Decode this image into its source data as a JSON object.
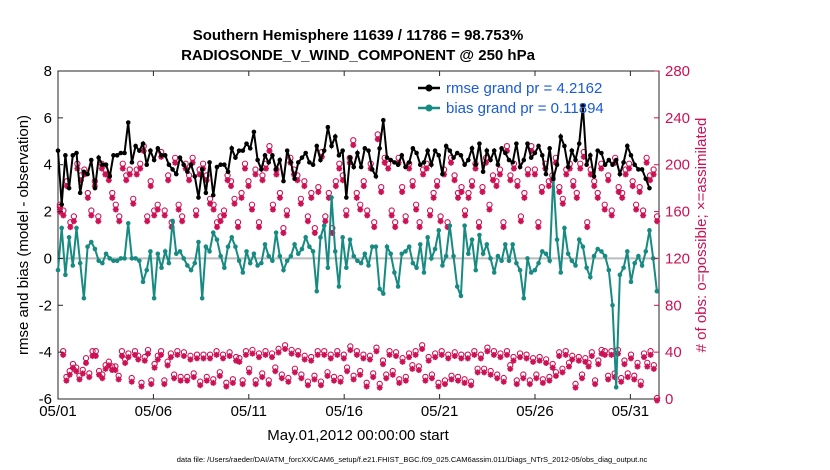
{
  "chart_data": {
    "type": "line",
    "title_line1": "Southern Hemisphere 11639 / 11786 = 98.753%",
    "title_line2": "RADIOSONDE_V_WIND_COMPONENT @ 250 hPa",
    "xlabel": "May.01,2012 00:00:00 start",
    "ylabel_left": "rmse and bias (model - observation)",
    "ylabel_right": "# of obs: o=possible; ×=assimilated",
    "xlim": [
      0,
      31.5
    ],
    "ylim_left": [
      -6,
      8
    ],
    "ylim_right": [
      0,
      280
    ],
    "xticks": [
      0,
      5,
      10,
      15,
      20,
      25,
      30
    ],
    "xtick_labels": [
      "05/01",
      "05/06",
      "05/11",
      "05/16",
      "05/21",
      "05/26",
      "05/31"
    ],
    "yticks_left": [
      -6,
      -4,
      -2,
      0,
      2,
      4,
      6,
      8
    ],
    "yticks_right": [
      0,
      40,
      80,
      120,
      160,
      200,
      240,
      280
    ],
    "colors": {
      "rmse": "#000000",
      "bias": "#178a82",
      "obs": "#cc1155",
      "zero": "#bbbbbb",
      "legend_text": "#1a5bd6"
    },
    "legend": {
      "rmse": "rmse grand pr = 4.2162",
      "bias": "bias grand pr = 0.11894",
      "location": "top-right"
    },
    "rmse": [
      4.6,
      2.3,
      4.4,
      3.0,
      4.4,
      4.5,
      2.8,
      3.7,
      3.6,
      4.2,
      3.0,
      4.3,
      4.0,
      4.0,
      3.5,
      4.4,
      4.4,
      4.5,
      4.5,
      5.8,
      4.1,
      4.8,
      4.6,
      4.9,
      4.0,
      4.6,
      4.2,
      4.7,
      4.4,
      4.4,
      4.0,
      3.8,
      3.6,
      4.3,
      4.0,
      3.7,
      4.0,
      3.5,
      2.6,
      3.8,
      2.8,
      4.1,
      2.7,
      3.9,
      4.0,
      4.0,
      3.7,
      4.7,
      4.3,
      4.6,
      4.6,
      4.9,
      4.7,
      5.4,
      4.2,
      3.8,
      4.4,
      4.1,
      4.4,
      3.8,
      4.2,
      3.3,
      4.6,
      4.1,
      3.4,
      4.1,
      4.3,
      4.5,
      4.1,
      4.0,
      4.8,
      4.2,
      4.6,
      5.6,
      4.8,
      5.2,
      4.4,
      4.6,
      2.6,
      4.3,
      3.9,
      4.5,
      3.9,
      4.7,
      4.6,
      3.8,
      3.5,
      4.7,
      5.9,
      4.3,
      4.2,
      4.1,
      4.0,
      4.4,
      3.9,
      4.1,
      4.7,
      4.5,
      4.0,
      4.1,
      4.6,
      4.0,
      4.6,
      4.4,
      3.6,
      4.8,
      4.6,
      4.3,
      4.5,
      4.4,
      4.0,
      4.2,
      4.7,
      4.0,
      4.9,
      3.7,
      4.6,
      4.2,
      4.6,
      4.0,
      4.7,
      4.5,
      4.2,
      4.1,
      4.9,
      3.9,
      4.2,
      4.9,
      4.3,
      4.5,
      4.8,
      4.4,
      3.6,
      4.7,
      3.4,
      4.0,
      5.2,
      4.8,
      3.9,
      4.6,
      4.2,
      4.9,
      6.5,
      4.0,
      4.4,
      3.5,
      4.6,
      4.5,
      4.0,
      4.2,
      4.0,
      4.2,
      3.6,
      4.1,
      4.8,
      4.4,
      4.0,
      3.8,
      3.8,
      3.4,
      3.0
    ],
    "bias": [
      -0.5,
      1.3,
      -0.7,
      0.9,
      -0.3,
      1.3,
      -0.2,
      -1.7,
      0.5,
      0.7,
      0.4,
      -0.1,
      -0.2,
      0.2,
      0.0,
      -0.1,
      -0.1,
      0.0,
      0.0,
      1.5,
      0.0,
      0.0,
      -0.1,
      -1.0,
      -0.5,
      0.3,
      -1.7,
      0.2,
      -0.4,
      0.3,
      -0.2,
      1.6,
      0.2,
      0.3,
      0.0,
      -0.3,
      -0.5,
      -0.2,
      0.7,
      -1.7,
      0.5,
      0.3,
      1.1,
      0.8,
      0.1,
      -0.4,
      0.5,
      0.9,
      0.5,
      -0.1,
      -0.6,
      0.3,
      -0.2,
      0.2,
      -0.3,
      -0.2,
      0.6,
      0.1,
      -0.1,
      1.1,
      0.1,
      -0.5,
      -0.1,
      0.1,
      0.6,
      0.2,
      0.4,
      0.9,
      0.5,
      0.3,
      -1.4,
      0.9,
      1.4,
      -0.4,
      2.6,
      0.3,
      -1.2,
      0.9,
      -0.4,
      0.8,
      0.1,
      -0.1,
      -0.2,
      0.2,
      -0.3,
      0.5,
      0.5,
      -1.3,
      -1.5,
      0.5,
      0.2,
      -0.6,
      -1.2,
      0.2,
      0.3,
      0.5,
      -0.2,
      -0.4,
      0.6,
      -0.6,
      0.9,
      0.0,
      0.4,
      1.2,
      -0.3,
      0.1,
      1.4,
      0.1,
      -1.2,
      -1.6,
      1.4,
      0.2,
      0.8,
      -0.5,
      1.0,
      0.2,
      0.6,
      0.0,
      -0.6,
      0.1,
      -0.1,
      0.6,
      -0.1,
      0.6,
      -0.2,
      -0.5,
      -1.7,
      0.0,
      -0.6,
      -0.5,
      -0.2,
      0.3,
      0.2,
      -0.1,
      3.5,
      0.8,
      -0.6,
      1.3,
      0.2,
      -0.1,
      -0.3,
      0.8,
      0.5,
      -0.4,
      -0.8,
      0.1,
      0.4,
      0.3,
      0.1,
      -0.5,
      -2.0,
      -5.5,
      -0.7,
      -0.4,
      0.3,
      -1.0,
      -0.2,
      0.1,
      -0.3,
      0.3,
      1.2,
      0.0,
      -1.4
    ],
    "obs_possible": [
      163,
      40,
      18,
      23,
      29,
      26,
      19,
      24,
      34,
      21,
      40,
      40,
      23,
      20,
      28,
      31,
      27,
      27,
      19,
      40,
      33,
      38,
      17,
      40,
      36,
      13,
      35,
      41,
      15,
      29,
      36,
      40,
      15,
      31,
      38,
      20,
      40,
      18,
      39,
      18,
      36,
      21,
      37,
      14,
      37,
      18,
      37,
      16,
      40,
      22,
      37,
      13,
      39,
      16,
      35,
      34,
      15,
      40,
      25,
      41,
      15,
      38,
      21,
      40,
      15,
      38,
      26,
      42,
      20,
      45,
      17,
      41,
      25,
      40,
      20,
      36,
      14,
      35,
      19,
      40,
      14,
      40,
      22,
      37,
      18,
      40,
      17,
      37,
      26,
      44,
      19,
      40,
      23,
      37,
      13,
      36,
      21,
      43,
      12,
      32,
      20,
      40,
      23,
      39,
      16,
      34,
      18,
      38,
      28,
      40,
      27,
      45,
      18,
      35,
      20,
      38,
      13,
      40,
      15,
      37,
      19,
      39,
      18,
      37,
      16,
      37,
      14,
      40,
      25,
      37,
      25,
      43,
      23,
      40,
      20,
      38,
      17,
      40,
      28,
      35,
      15,
      38,
      20,
      37,
      15,
      34,
      20,
      35,
      16,
      33,
      18,
      29,
      22,
      39,
      25,
      40,
      30,
      36,
      12,
      35,
      20,
      34,
      30,
      39,
      15,
      32,
      41,
      40,
      19,
      40,
      21,
      41,
      17,
      32,
      21,
      37,
      19,
      30,
      14,
      38,
      30,
      40,
      28,
      0
    ],
    "obs_assimilated": [
      161,
      39,
      17,
      22,
      28,
      25,
      18,
      23,
      32,
      20,
      38,
      38,
      22,
      19,
      27,
      30,
      26,
      26,
      18,
      38,
      32,
      37,
      16,
      39,
      35,
      12,
      34,
      40,
      14,
      28,
      35,
      39,
      14,
      30,
      37,
      19,
      39,
      17,
      38,
      17,
      35,
      20,
      36,
      13,
      36,
      17,
      36,
      15,
      39,
      21,
      36,
      12,
      38,
      15,
      34,
      33,
      14,
      39,
      24,
      40,
      14,
      37,
      20,
      39,
      14,
      37,
      25,
      41,
      19,
      44,
      16,
      40,
      24,
      39,
      19,
      35,
      13,
      34,
      18,
      39,
      13,
      39,
      21,
      36,
      17,
      39,
      16,
      36,
      25,
      43,
      18,
      39,
      22,
      36,
      12,
      35,
      20,
      42,
      11,
      31,
      19,
      39,
      22,
      38,
      15,
      33,
      17,
      37,
      27,
      39,
      26,
      44,
      17,
      34,
      19,
      37,
      12,
      39,
      14,
      36,
      18,
      38,
      17,
      36,
      15,
      36,
      13,
      39,
      24,
      36,
      24,
      42,
      22,
      39,
      19,
      37,
      16,
      39,
      27,
      34,
      14,
      37,
      19,
      36,
      14,
      33,
      19,
      34,
      15,
      32,
      17,
      28,
      21,
      38,
      24,
      39,
      29,
      35,
      11,
      34,
      19,
      33,
      29,
      38,
      14,
      31,
      40,
      39,
      18,
      39,
      20,
      40,
      16,
      31,
      20,
      36,
      18,
      29,
      13,
      37,
      29,
      39,
      27,
      0
    ],
    "obs_upper": [
      165,
      160,
      185,
      150,
      155,
      200,
      190,
      195,
      175,
      160,
      185,
      155,
      200,
      195,
      190,
      175,
      165,
      155,
      200,
      190,
      195,
      170,
      195,
      200,
      215,
      155,
      185,
      160,
      165,
      210,
      160,
      190,
      150,
      205,
      165,
      155,
      200,
      190,
      205,
      160,
      195,
      200,
      190,
      170,
      165,
      150,
      155,
      160,
      190,
      185,
      170,
      150,
      175,
      200,
      185,
      165,
      195,
      150,
      190,
      200,
      215,
      165,
      195,
      175,
      145,
      160,
      205,
      195,
      190,
      170,
      185,
      155,
      175,
      145,
      180,
      210,
      155,
      175,
      145,
      185,
      200,
      190,
      160,
      205,
      220,
      175,
      165,
      185,
      160,
      200,
      150,
      225,
      180,
      205,
      200,
      160,
      150,
      205,
      180,
      155,
      200,
      185,
      165,
      150,
      195,
      200,
      160,
      175,
      185,
      155,
      195,
      150,
      205,
      190,
      175,
      180,
      160,
      175,
      185,
      200,
      150,
      180,
      205,
      165,
      190,
      185,
      195,
      150,
      215,
      190,
      200,
      185,
      155,
      175,
      195,
      215,
      195,
      150,
      180,
      200,
      185,
      190,
      205,
      180,
      170,
      195,
      200,
      185,
      175,
      200,
      210,
      150,
      195,
      185,
      175,
      200,
      165,
      190,
      160,
      205,
      180,
      175,
      195,
      200,
      185,
      165,
      180,
      160,
      205,
      190,
      195,
      155
    ]
  }
}
